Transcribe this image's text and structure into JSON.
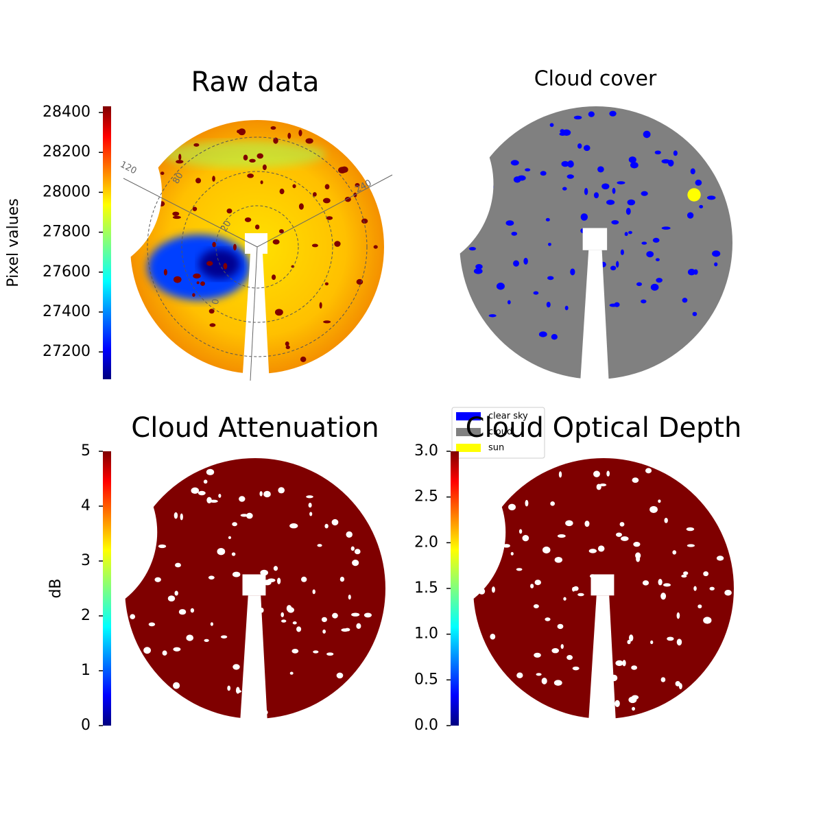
{
  "chart_data": [
    {
      "type": "image",
      "title": "Raw data",
      "colorbar": {
        "label": "Pixel values",
        "lim": [
          27063,
          28431
        ],
        "ticks": [
          27200,
          27400,
          27600,
          27800,
          28000,
          28200,
          28400
        ]
      },
      "annotations": [
        "120",
        "80",
        "240",
        "20",
        "0"
      ]
    },
    {
      "type": "image",
      "title": "Cloud cover",
      "legend": [
        {
          "name": "clear sky",
          "color": "#0000ff"
        },
        {
          "name": "cloud",
          "color": "#808080"
        },
        {
          "name": "sun",
          "color": "#ffff00"
        }
      ]
    },
    {
      "type": "image",
      "title": "Cloud Attenuation",
      "colorbar": {
        "label": "dB",
        "lim": [
          0,
          5
        ],
        "ticks": [
          0,
          1,
          2,
          3,
          4,
          5
        ]
      }
    },
    {
      "type": "image",
      "title": "Cloud Optical Depth",
      "colorbar": {
        "label": null,
        "lim": [
          0,
          3
        ],
        "ticks": [
          {
            "value": 0,
            "label": "0.0"
          },
          0.5,
          {
            "value": 1,
            "label": "1.0"
          },
          1.5,
          {
            "value": 2,
            "label": "2.0"
          },
          2.5,
          {
            "value": 3,
            "label": "3.0"
          }
        ]
      }
    }
  ]
}
